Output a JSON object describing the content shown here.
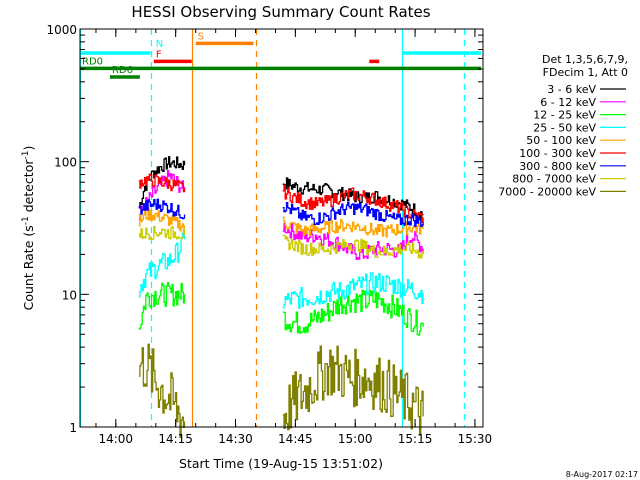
{
  "chart_data": {
    "type": "line",
    "title": "HESSI Observing Summary Count Rates",
    "xlabel": "Start Time (19-Aug-15 13:51:02)",
    "ylabel_parts": [
      "Count Rate (s",
      "-1",
      " detector",
      "-1",
      ")"
    ],
    "yscale": "log",
    "ylim": [
      1,
      1000
    ],
    "xlim_min": [
      0,
      101
    ],
    "x_ticks": [
      {
        "min": 8.97,
        "label": "14:00"
      },
      {
        "min": 23.97,
        "label": "14:15"
      },
      {
        "min": 38.97,
        "label": "14:30"
      },
      {
        "min": 53.97,
        "label": "14:45"
      },
      {
        "min": 68.97,
        "label": "15:00"
      },
      {
        "min": 83.97,
        "label": "15:15"
      },
      {
        "min": 98.97,
        "label": "15:30"
      }
    ],
    "y_ticks": [
      {
        "value": 1,
        "label": "1"
      },
      {
        "value": 10,
        "label": "10"
      },
      {
        "value": 100,
        "label": "100"
      },
      {
        "value": 1000,
        "label": "1000"
      }
    ],
    "legend_header": [
      "Det 1,3,5,6,7,9,",
      "FDecim 1, Att 0"
    ],
    "footer_date": "8-Aug-2017 02:17",
    "gaps": [
      [
        17.0,
        26.5
      ],
      [
        37.5,
        50.3
      ],
      [
        78.0,
        80.5
      ]
    ],
    "series": [
      {
        "name": "3 - 6 keV",
        "color": "#000000",
        "segments": [
          {
            "x": [
              14.7,
              16.2,
              18.2,
              20.2,
              22.2,
              24.2,
              26.2
            ],
            "y": [
              45,
              65,
              82,
              92,
              98,
              97,
              94
            ]
          },
          {
            "x": [
              50.8,
              53,
              56,
              59,
              62,
              65,
              68,
              71,
              74,
              77,
              80,
              83,
              86
            ],
            "y": [
              70,
              66,
              63,
              62,
              61,
              58,
              55,
              53,
              55,
              52,
              49,
              45,
              40
            ]
          }
        ]
      },
      {
        "name": "6 - 12 keV",
        "color": "#ff00ff",
        "segments": [
          {
            "x": [
              14.7,
              16.5,
              18.5,
              20.5,
              22.5,
              24.5,
              26.2
            ],
            "y": [
              38,
              48,
              58,
              68,
              78,
              68,
              60
            ]
          },
          {
            "x": [
              50.8,
              53,
              56,
              59,
              62,
              65,
              68,
              71,
              74,
              77,
              80,
              83,
              86
            ],
            "y": [
              33,
              30,
              27,
              28,
              26,
              24,
              21,
              20,
              22,
              22,
              21,
              28,
              22
            ]
          }
        ]
      },
      {
        "name": "12 - 25 keV",
        "color": "#00ff00",
        "segments": [
          {
            "x": [
              14.7,
              16.5,
              18.5,
              20.5,
              22.5,
              24.5,
              26.2
            ],
            "y": [
              5.5,
              9.5,
              10,
              10,
              10,
              10,
              10
            ]
          },
          {
            "x": [
              50.8,
              53,
              56,
              59,
              62,
              65,
              68,
              71,
              74,
              77,
              80,
              83,
              86
            ],
            "y": [
              6.8,
              6.2,
              6.0,
              6.5,
              7.3,
              8.5,
              9.0,
              8.8,
              9.2,
              8.5,
              7.5,
              6.5,
              5.7
            ]
          }
        ]
      },
      {
        "name": "25 - 50 keV",
        "color": "#00ffff",
        "segments": [
          {
            "x": [
              14.7,
              16.5,
              18.5,
              20.5,
              22.5,
              24.5,
              26.2
            ],
            "y": [
              11,
              14,
              15.5,
              17,
              18,
              21,
              26
            ]
          },
          {
            "x": [
              50.8,
              53,
              56,
              59,
              62,
              65,
              68,
              71,
              74,
              77,
              80,
              83,
              86
            ],
            "y": [
              8.8,
              9.2,
              9.4,
              9.6,
              10.3,
              10.5,
              11.3,
              11.8,
              12.3,
              12.1,
              11.5,
              11.0,
              10.2
            ]
          }
        ]
      },
      {
        "name": "50 - 100 keV",
        "color": "#ffa500",
        "segments": [
          {
            "x": [
              14.7,
              16.5,
              18.5,
              20.5,
              22.5,
              24.5,
              26.2
            ],
            "y": [
              35,
              40,
              40,
              38,
              36,
              34,
              33
            ]
          },
          {
            "x": [
              50.8,
              53,
              56,
              59,
              62,
              65,
              68,
              71,
              74,
              77,
              80,
              83,
              86
            ],
            "y": [
              35,
              33,
              30,
              31,
              32,
              33,
              33,
              32,
              30,
              30,
              31,
              32,
              31
            ]
          }
        ]
      },
      {
        "name": "100 - 300 keV",
        "color": "#ff0000",
        "segments": [
          {
            "x": [
              14.7,
              16.5,
              18.5,
              20.5,
              22.5,
              24.5,
              26.2
            ],
            "y": [
              70,
              73,
              72,
              70,
              68,
              65,
              63
            ]
          },
          {
            "x": [
              50.8,
              53,
              56,
              59,
              62,
              65,
              68,
              71,
              74,
              77,
              80,
              83,
              86
            ],
            "y": [
              60,
              55,
              50,
              48,
              50,
              54,
              57,
              55,
              52,
              48,
              45,
              40,
              38
            ]
          }
        ]
      },
      {
        "name": "300 - 800 keV",
        "color": "#0000ff",
        "segments": [
          {
            "x": [
              14.7,
              16.5,
              18.5,
              20.5,
              22.5,
              24.5,
              26.2
            ],
            "y": [
              43,
              46,
              48,
              47,
              45,
              42,
              40
            ]
          },
          {
            "x": [
              50.8,
              53,
              56,
              59,
              62,
              65,
              68,
              71,
              74,
              77,
              80,
              83,
              86
            ],
            "y": [
              47,
              43,
              38,
              37,
              39,
              43,
              45,
              44,
              41,
              38,
              36,
              37,
              35
            ]
          }
        ]
      },
      {
        "name": "800 - 7000 keV",
        "color": "#cccc00",
        "segments": [
          {
            "x": [
              14.7,
              16.5,
              18.5,
              20.5,
              22.5,
              24.5,
              26.2
            ],
            "y": [
              28,
              29,
              29,
              30,
              29,
              29,
              28
            ]
          },
          {
            "x": [
              50.8,
              53,
              56,
              59,
              62,
              65,
              68,
              71,
              74,
              77,
              80,
              83,
              86
            ],
            "y": [
              25,
              24,
              22,
              22,
              22,
              23,
              24,
              23,
              21,
              21,
              22,
              22,
              20
            ]
          }
        ]
      },
      {
        "name": "7000 - 20000 keV",
        "color": "#808000",
        "segments": [
          {
            "x": [
              14.7,
              16.5,
              18.5,
              20.5,
              22.5,
              24.5,
              26.2
            ],
            "y": [
              2.8,
              3.0,
              2.3,
              1.9,
              1.6,
              1.3,
              1.1
            ]
          },
          {
            "x": [
              50.8,
              53,
              56,
              59,
              62,
              65,
              68,
              71,
              74,
              77,
              80,
              83,
              86
            ],
            "y": [
              1.2,
              1.5,
              1.8,
              2.3,
              2.8,
              2.6,
              2.3,
              2.4,
              2.2,
              2.0,
              1.7,
              1.5,
              1.2
            ]
          }
        ]
      }
    ],
    "vlines": [
      {
        "min": 0.0,
        "color": "#00ffff",
        "style": "solid"
      },
      {
        "min": 17.7,
        "color": "#00ffff",
        "style": "dashed"
      },
      {
        "min": 28.0,
        "color": "#ff8000",
        "style": "solid"
      },
      {
        "min": 44.0,
        "color": "#ff8000",
        "style": "dashed"
      },
      {
        "min": 80.8,
        "color": "#00ffff",
        "style": "solid"
      },
      {
        "min": 96.2,
        "color": "#00ffff",
        "style": "dashed"
      }
    ],
    "attitude_bars": [
      {
        "label": "",
        "color": "#00ffff",
        "min_start": 0.0,
        "min_end": 17.7,
        "level": 660
      },
      {
        "label": "",
        "color": "#00ffff",
        "min_start": 80.8,
        "min_end": 100.5,
        "level": 660
      },
      {
        "label": "N",
        "color": "#00ffff",
        "min_start": 19.0,
        "min_end": 19.0,
        "level": 680
      },
      {
        "label": "S",
        "color": "#ff8000",
        "min_start": 29.0,
        "min_end": 43.5,
        "level": 780
      },
      {
        "label": "F",
        "color": "#ff0000",
        "min_start": 18.5,
        "min_end": 28.0,
        "level": 570
      },
      {
        "label": "",
        "color": "#ff0000",
        "min_start": 72.5,
        "min_end": 75.0,
        "level": 570
      },
      {
        "label": "RD0",
        "color": "#008000",
        "min_start": 0.0,
        "min_end": 100.5,
        "level": 505
      },
      {
        "label": "RD6",
        "color": "#008000",
        "min_start": 7.5,
        "min_end": 15.0,
        "level": 435
      }
    ]
  }
}
